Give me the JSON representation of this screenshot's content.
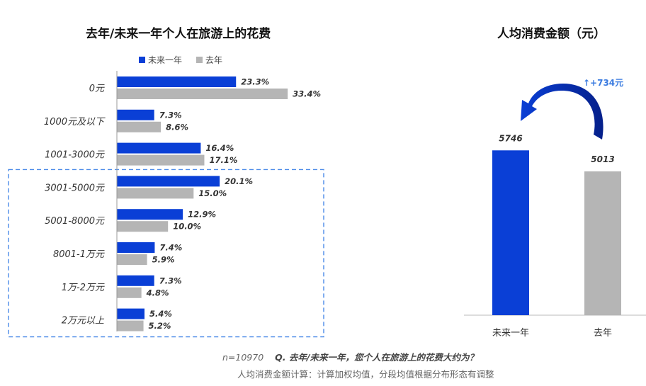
{
  "left_chart": {
    "title": "去年/未来一年个人在旅游上的花费",
    "legend": [
      "未来一年",
      "去年"
    ]
  },
  "right_chart": {
    "title": "人均消费金额（元）",
    "annotation": "↑+734元"
  },
  "footer": {
    "sample": "n=10970",
    "question": "Q. 去年/未来一年，您个人在旅游上的花费大约为？",
    "note": "人均消费金额计算：计算加权均值，分段均值根据分布形态有调整"
  },
  "colors": {
    "next_year": "#0a3fd6",
    "last_year": "#b5b5b5",
    "highlight_border": "#4a8ae8",
    "annotation": "#3a7be0"
  },
  "chart_data": [
    {
      "type": "bar",
      "orientation": "horizontal",
      "title": "去年/未来一年个人在旅游上的花费",
      "categories": [
        "0元",
        "1000元及以下",
        "1001-3000元",
        "3001-5000元",
        "5001-8000元",
        "8001-1万元",
        "1万-2万元",
        "2万元以上"
      ],
      "series": [
        {
          "name": "未来一年",
          "values": [
            23.3,
            7.3,
            16.4,
            20.1,
            12.9,
            7.4,
            7.3,
            5.4
          ],
          "color": "#0a3fd6"
        },
        {
          "name": "去年",
          "values": [
            33.4,
            8.6,
            17.1,
            15.0,
            10.0,
            5.9,
            4.8,
            5.2
          ],
          "color": "#b5b5b5"
        }
      ],
      "value_labels": [
        [
          "23.3%",
          "7.3%",
          "16.4%",
          "20.1%",
          "12.9%",
          "7.4%",
          "7.3%",
          "5.4%"
        ],
        [
          "33.4%",
          "8.6%",
          "17.1%",
          "15.0%",
          "10.0%",
          "5.9%",
          "4.8%",
          "5.2%"
        ]
      ],
      "unit": "%",
      "xlim": [
        0,
        35
      ],
      "highlighted_categories": [
        "3001-5000元",
        "5001-8000元",
        "8001-1万元",
        "1万-2万元",
        "2万元以上"
      ],
      "legend_position": "top-left",
      "grid": false
    },
    {
      "type": "bar",
      "orientation": "vertical",
      "title": "人均消费金额（元）",
      "categories": [
        "未来一年",
        "去年"
      ],
      "values": [
        5746,
        5013
      ],
      "value_labels": [
        "5746",
        "5013"
      ],
      "colors": [
        "#0a3fd6",
        "#b5b5b5"
      ],
      "ylim": [
        0,
        7000
      ],
      "grid": false
    }
  ]
}
